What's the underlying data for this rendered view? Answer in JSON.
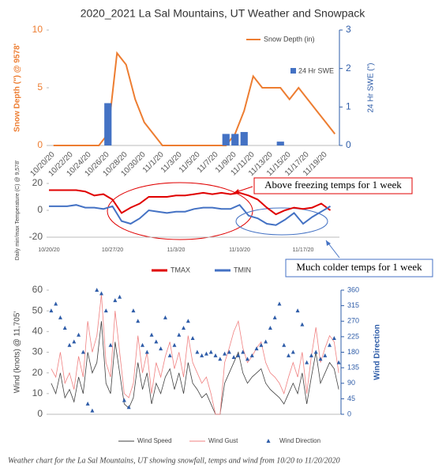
{
  "chart_data": [
    {
      "type": "combo",
      "title": "2020_2021 La Sal Mountains, UT Weather and Snowpack",
      "y_label": "Snow Depth (\") @ 9578'",
      "y2_label": "24 Hr SWE (\")",
      "categories": [
        "10/20/20",
        null,
        "10/22/20",
        null,
        "10/24/20",
        null,
        "10/26/20",
        null,
        "10/28/20",
        null,
        "10/30/20",
        null,
        "11/1/20",
        null,
        "11/3/20",
        null,
        "11/5/20",
        null,
        "11/7/20",
        null,
        "11/9/20",
        null,
        "11/11/20",
        null,
        "11/13/20",
        null,
        "11/15/20",
        null,
        "11/17/20",
        null,
        "11/19/20",
        null
      ],
      "ylim": [
        0,
        10
      ],
      "yticks": [
        0,
        5,
        10
      ],
      "y2lim": [
        0,
        3
      ],
      "y2ticks": [
        0,
        1,
        2,
        3
      ],
      "series": [
        {
          "name": "Snow Depth (in)",
          "type": "line",
          "color": "#ed7d31",
          "values": [
            0,
            0,
            0,
            0,
            0,
            0,
            1,
            8,
            7,
            4,
            2,
            1,
            0,
            0,
            0,
            0,
            0,
            0,
            0,
            0,
            1,
            3,
            6,
            5,
            5,
            5,
            4,
            5,
            4,
            3,
            2,
            1
          ]
        },
        {
          "name": "24 Hr SWE",
          "type": "bar",
          "axis": "y2",
          "color": "#4472c4",
          "values": [
            0,
            0,
            0,
            0,
            0,
            0,
            1.1,
            0,
            0,
            0,
            0,
            0,
            0,
            0,
            0,
            0,
            0,
            0,
            0,
            0.3,
            0.3,
            0.35,
            0,
            0,
            0,
            0.1,
            0,
            0,
            0,
            0,
            0,
            0
          ]
        }
      ]
    },
    {
      "type": "line",
      "y_label": "Daily min/max Temperature (C) @ 9,578'",
      "categories": [
        "10/20/20",
        null,
        null,
        null,
        null,
        null,
        null,
        "10/27/20",
        null,
        null,
        null,
        null,
        null,
        null,
        "11/3/20",
        null,
        null,
        null,
        null,
        null,
        null,
        "11/10/20",
        null,
        null,
        null,
        null,
        null,
        null,
        "11/17/20",
        null,
        null,
        null
      ],
      "ylim": [
        -20,
        20
      ],
      "yticks": [
        -20,
        0,
        20
      ],
      "annotations": [
        "Above freezing temps for 1 week",
        "Much colder temps for 1 week"
      ],
      "series": [
        {
          "name": "TMAX",
          "type": "line",
          "color": "#e00000",
          "values": [
            15,
            15,
            15,
            15,
            14,
            11,
            12,
            8,
            -2,
            2,
            5,
            10,
            10,
            10,
            11,
            11,
            12,
            13,
            12,
            13,
            12,
            13,
            11,
            8,
            2,
            -3,
            0,
            2,
            1,
            2,
            5,
            0
          ]
        },
        {
          "name": "TMIN",
          "type": "line",
          "color": "#4472c4",
          "values": [
            3,
            3,
            3,
            4,
            2,
            2,
            1,
            3,
            -8,
            -10,
            -6,
            0,
            -1,
            -2,
            -1,
            -1,
            1,
            2,
            2,
            1,
            1,
            4,
            -4,
            -6,
            -10,
            -11,
            -7,
            -2,
            -10,
            -5,
            -1,
            3
          ]
        }
      ]
    },
    {
      "type": "combo",
      "y_label": "Wind (knots) @ 11,705'",
      "y2_label": "Wind Direction",
      "ylim": [
        0,
        60
      ],
      "yticks": [
        0,
        10,
        20,
        30,
        40,
        50,
        60
      ],
      "y2lim": [
        0,
        360
      ],
      "y2ticks": [
        0,
        45,
        90,
        135,
        180,
        225,
        270,
        315,
        360
      ],
      "series": [
        {
          "name": "Wind Speed",
          "type": "line",
          "color": "#404040",
          "values": [
            15,
            10,
            20,
            8,
            12,
            6,
            18,
            10,
            30,
            20,
            25,
            45,
            15,
            10,
            35,
            20,
            5,
            3,
            8,
            25,
            12,
            20,
            5,
            15,
            10,
            18,
            22,
            12,
            20,
            10,
            25,
            15,
            12,
            8,
            10,
            5,
            0,
            0,
            15,
            20,
            25,
            30,
            20,
            15,
            18,
            20,
            22,
            15,
            12,
            10,
            8,
            5,
            10,
            15,
            10,
            20,
            5,
            18,
            30,
            15,
            20,
            25,
            22,
            12
          ]
        },
        {
          "name": "Wind Gust",
          "type": "line",
          "color": "#f08080",
          "values": [
            22,
            18,
            30,
            15,
            20,
            12,
            28,
            18,
            45,
            30,
            38,
            58,
            25,
            18,
            50,
            30,
            10,
            8,
            15,
            38,
            20,
            30,
            10,
            25,
            18,
            28,
            35,
            22,
            30,
            18,
            38,
            25,
            20,
            15,
            18,
            10,
            0,
            0,
            25,
            32,
            40,
            45,
            32,
            25,
            28,
            32,
            35,
            25,
            20,
            18,
            15,
            10,
            18,
            25,
            18,
            30,
            10,
            28,
            42,
            25,
            32,
            38,
            35,
            20
          ]
        },
        {
          "name": "Wind Direction",
          "type": "scatter",
          "axis": "y2",
          "color": "#2e5ca8",
          "values": [
            300,
            320,
            280,
            250,
            200,
            210,
            230,
            180,
            30,
            10,
            360,
            350,
            300,
            200,
            330,
            340,
            40,
            20,
            300,
            270,
            200,
            180,
            230,
            210,
            190,
            280,
            170,
            200,
            230,
            250,
            270,
            220,
            180,
            170,
            175,
            180,
            170,
            160,
            175,
            180,
            165,
            170,
            180,
            160,
            170,
            190,
            200,
            210,
            250,
            280,
            320,
            200,
            170,
            180,
            300,
            260,
            150,
            170,
            180,
            160,
            170,
            200,
            220,
            150
          ]
        }
      ]
    }
  ],
  "caption": "Weather chart for the La Sal Mountains, UT showing snowfall, temps and wind from 10/20 to 11/20/2020"
}
